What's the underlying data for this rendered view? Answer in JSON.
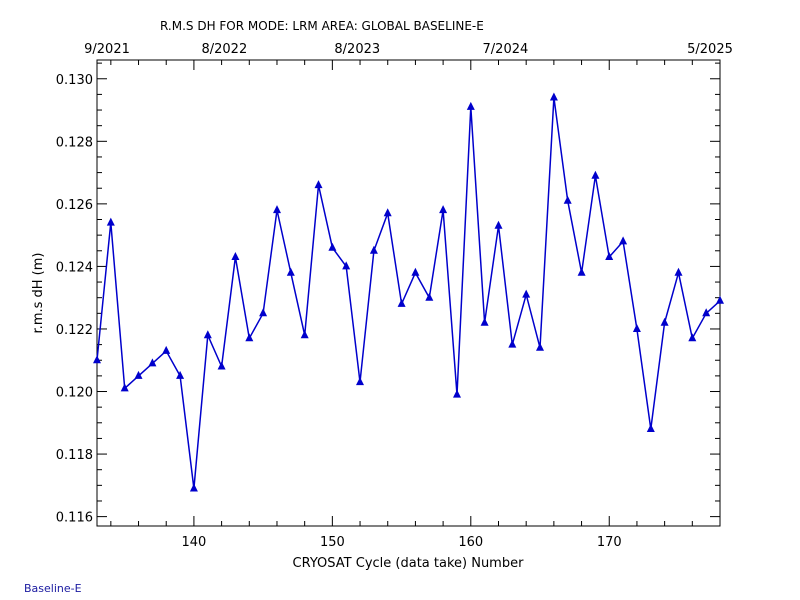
{
  "footer_label": "Baseline-E",
  "colors": {
    "series": "#0000cc",
    "axis": "#000000",
    "footer": "#1a1aa0"
  },
  "chart_data": {
    "type": "line",
    "title": "R.M.S DH FOR MODE: LRM AREA: GLOBAL BASELINE-E",
    "xlabel": "CRYOSAT Cycle (data take) Number",
    "ylabel": "r.m.s dH (m)",
    "xlim": [
      133,
      178
    ],
    "ylim": [
      0.1157,
      0.1306
    ],
    "x_ticks": [
      140,
      150,
      160,
      170
    ],
    "x_tick_labels": [
      "140",
      "150",
      "160",
      "170"
    ],
    "y_ticks": [
      0.116,
      0.118,
      0.12,
      0.122,
      0.124,
      0.126,
      0.128,
      0.13
    ],
    "y_tick_labels": [
      "0.116",
      "0.118",
      "0.120",
      "0.122",
      "0.124",
      "0.126",
      "0.128",
      "0.130"
    ],
    "top_axis_labels": [
      {
        "x": 133,
        "label": "9/2021"
      },
      {
        "x": 142.2,
        "label": "8/2022"
      },
      {
        "x": 151.8,
        "label": "8/2023"
      },
      {
        "x": 162.5,
        "label": "7/2024"
      },
      {
        "x": 178,
        "label": "5/2025"
      }
    ],
    "grid": false,
    "marker": "triangle",
    "series": [
      {
        "x": [
          133,
          134,
          135,
          136,
          137,
          138,
          139,
          140,
          141,
          142,
          143,
          144,
          145,
          146,
          147,
          148,
          149,
          150,
          151,
          152,
          153,
          154,
          155,
          156,
          157,
          158,
          159,
          160,
          161,
          162,
          163,
          164,
          165,
          166,
          167,
          168,
          169,
          170,
          171,
          172,
          173,
          174,
          175,
          176,
          177,
          178
        ],
        "values": [
          0.121,
          0.1254,
          0.1201,
          0.1205,
          0.1209,
          0.1213,
          0.1205,
          0.1169,
          0.1218,
          0.1208,
          0.1243,
          0.1217,
          0.1225,
          0.1258,
          0.1238,
          0.1218,
          0.1266,
          0.1246,
          0.124,
          0.1203,
          0.1245,
          0.1257,
          0.1228,
          0.1238,
          0.123,
          0.1258,
          0.1199,
          0.1291,
          0.1222,
          0.1253,
          0.1215,
          0.1231,
          0.1214,
          0.1294,
          0.1261,
          0.1238,
          0.1269,
          0.1243,
          0.1248,
          0.122,
          0.1188,
          0.1222,
          0.1238,
          0.1217,
          0.1225,
          0.1229
        ]
      }
    ]
  }
}
